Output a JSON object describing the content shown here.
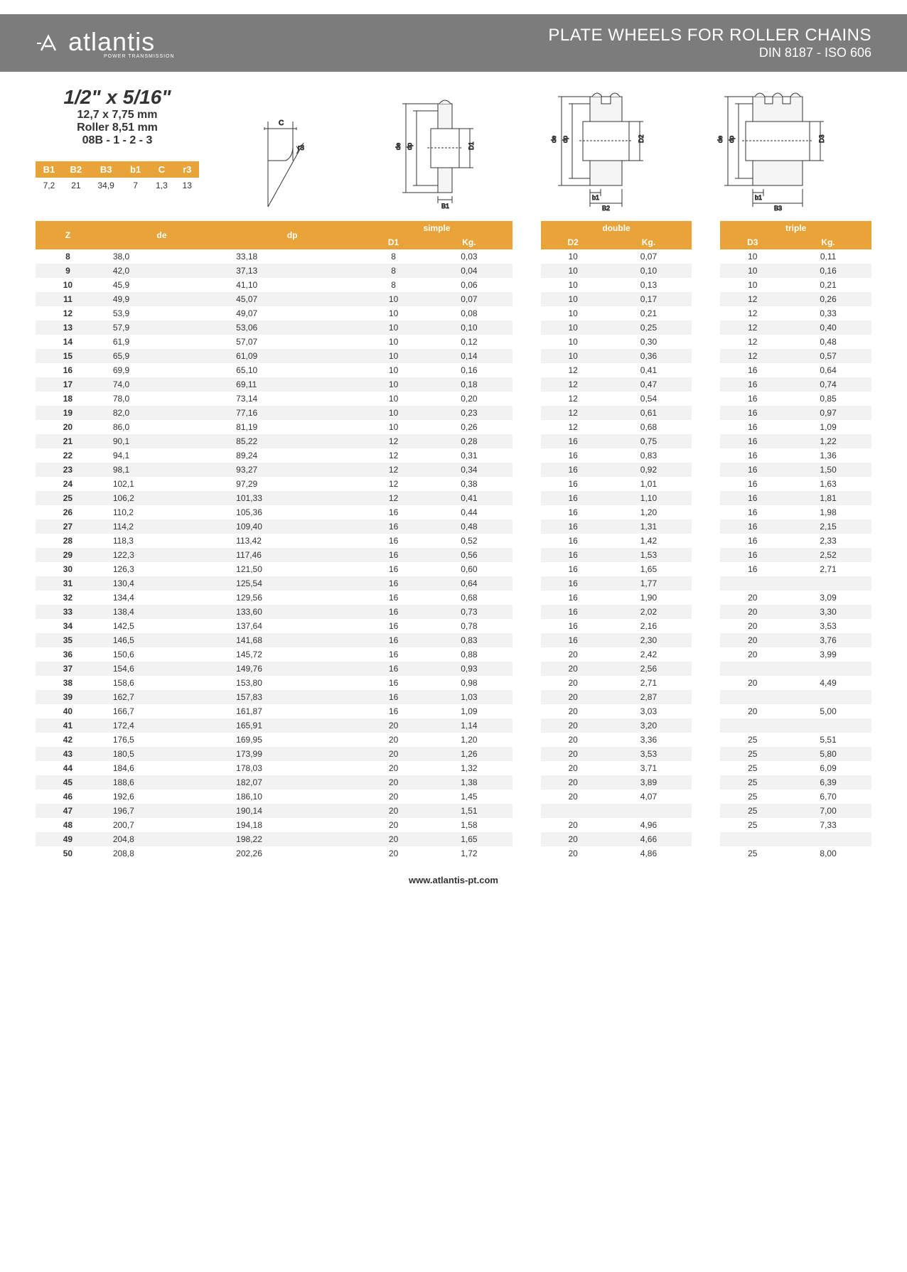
{
  "header": {
    "logo_text": "atlantis",
    "logo_sub": "POWER TRANSMISSION",
    "title": "PLATE WHEELS FOR ROLLER CHAINS",
    "subtitle": "DIN 8187 - ISO 606"
  },
  "spec": {
    "main": "1/2\" x 5/16\"",
    "mm": "12,7 x 7,75 mm",
    "roller": "Roller 8,51 mm",
    "code": "08B - 1 - 2 - 3",
    "headers": [
      "B1",
      "B2",
      "B3",
      "b1",
      "C",
      "r3"
    ],
    "values": [
      "7,2",
      "21",
      "34,9",
      "7",
      "1,3",
      "13"
    ]
  },
  "table": {
    "group_labels": [
      "simple",
      "double",
      "triple"
    ],
    "sub_headers": {
      "z": "Z",
      "de": "de",
      "dp": "dp",
      "d1": "D1",
      "kg1": "Kg.",
      "d2": "D2",
      "kg2": "Kg.",
      "d3": "D3",
      "kg3": "Kg."
    },
    "rows": [
      {
        "z": "8",
        "de": "38,0",
        "dp": "33,18",
        "d1": "8",
        "kg1": "0,03",
        "d2": "10",
        "kg2": "0,07",
        "d3": "10",
        "kg3": "0,11"
      },
      {
        "z": "9",
        "de": "42,0",
        "dp": "37,13",
        "d1": "8",
        "kg1": "0,04",
        "d2": "10",
        "kg2": "0,10",
        "d3": "10",
        "kg3": "0,16"
      },
      {
        "z": "10",
        "de": "45,9",
        "dp": "41,10",
        "d1": "8",
        "kg1": "0,06",
        "d2": "10",
        "kg2": "0,13",
        "d3": "10",
        "kg3": "0,21"
      },
      {
        "z": "11",
        "de": "49,9",
        "dp": "45,07",
        "d1": "10",
        "kg1": "0,07",
        "d2": "10",
        "kg2": "0,17",
        "d3": "12",
        "kg3": "0,26"
      },
      {
        "z": "12",
        "de": "53,9",
        "dp": "49,07",
        "d1": "10",
        "kg1": "0,08",
        "d2": "10",
        "kg2": "0,21",
        "d3": "12",
        "kg3": "0,33"
      },
      {
        "z": "13",
        "de": "57,9",
        "dp": "53,06",
        "d1": "10",
        "kg1": "0,10",
        "d2": "10",
        "kg2": "0,25",
        "d3": "12",
        "kg3": "0,40"
      },
      {
        "z": "14",
        "de": "61,9",
        "dp": "57,07",
        "d1": "10",
        "kg1": "0,12",
        "d2": "10",
        "kg2": "0,30",
        "d3": "12",
        "kg3": "0,48"
      },
      {
        "z": "15",
        "de": "65,9",
        "dp": "61,09",
        "d1": "10",
        "kg1": "0,14",
        "d2": "10",
        "kg2": "0,36",
        "d3": "12",
        "kg3": "0,57"
      },
      {
        "z": "16",
        "de": "69,9",
        "dp": "65,10",
        "d1": "10",
        "kg1": "0,16",
        "d2": "12",
        "kg2": "0,41",
        "d3": "16",
        "kg3": "0,64"
      },
      {
        "z": "17",
        "de": "74,0",
        "dp": "69,11",
        "d1": "10",
        "kg1": "0,18",
        "d2": "12",
        "kg2": "0,47",
        "d3": "16",
        "kg3": "0,74"
      },
      {
        "z": "18",
        "de": "78,0",
        "dp": "73,14",
        "d1": "10",
        "kg1": "0,20",
        "d2": "12",
        "kg2": "0,54",
        "d3": "16",
        "kg3": "0,85"
      },
      {
        "z": "19",
        "de": "82,0",
        "dp": "77,16",
        "d1": "10",
        "kg1": "0,23",
        "d2": "12",
        "kg2": "0,61",
        "d3": "16",
        "kg3": "0,97"
      },
      {
        "z": "20",
        "de": "86,0",
        "dp": "81,19",
        "d1": "10",
        "kg1": "0,26",
        "d2": "12",
        "kg2": "0,68",
        "d3": "16",
        "kg3": "1,09"
      },
      {
        "z": "21",
        "de": "90,1",
        "dp": "85,22",
        "d1": "12",
        "kg1": "0,28",
        "d2": "16",
        "kg2": "0,75",
        "d3": "16",
        "kg3": "1,22"
      },
      {
        "z": "22",
        "de": "94,1",
        "dp": "89,24",
        "d1": "12",
        "kg1": "0,31",
        "d2": "16",
        "kg2": "0,83",
        "d3": "16",
        "kg3": "1,36"
      },
      {
        "z": "23",
        "de": "98,1",
        "dp": "93,27",
        "d1": "12",
        "kg1": "0,34",
        "d2": "16",
        "kg2": "0,92",
        "d3": "16",
        "kg3": "1,50"
      },
      {
        "z": "24",
        "de": "102,1",
        "dp": "97,29",
        "d1": "12",
        "kg1": "0,38",
        "d2": "16",
        "kg2": "1,01",
        "d3": "16",
        "kg3": "1,63"
      },
      {
        "z": "25",
        "de": "106,2",
        "dp": "101,33",
        "d1": "12",
        "kg1": "0,41",
        "d2": "16",
        "kg2": "1,10",
        "d3": "16",
        "kg3": "1,81"
      },
      {
        "z": "26",
        "de": "110,2",
        "dp": "105,36",
        "d1": "16",
        "kg1": "0,44",
        "d2": "16",
        "kg2": "1,20",
        "d3": "16",
        "kg3": "1,98"
      },
      {
        "z": "27",
        "de": "114,2",
        "dp": "109,40",
        "d1": "16",
        "kg1": "0,48",
        "d2": "16",
        "kg2": "1,31",
        "d3": "16",
        "kg3": "2,15"
      },
      {
        "z": "28",
        "de": "118,3",
        "dp": "113,42",
        "d1": "16",
        "kg1": "0,52",
        "d2": "16",
        "kg2": "1,42",
        "d3": "16",
        "kg3": "2,33"
      },
      {
        "z": "29",
        "de": "122,3",
        "dp": "117,46",
        "d1": "16",
        "kg1": "0,56",
        "d2": "16",
        "kg2": "1,53",
        "d3": "16",
        "kg3": "2,52"
      },
      {
        "z": "30",
        "de": "126,3",
        "dp": "121,50",
        "d1": "16",
        "kg1": "0,60",
        "d2": "16",
        "kg2": "1,65",
        "d3": "16",
        "kg3": "2,71"
      },
      {
        "z": "31",
        "de": "130,4",
        "dp": "125,54",
        "d1": "16",
        "kg1": "0,64",
        "d2": "16",
        "kg2": "1,77",
        "d3": "",
        "kg3": ""
      },
      {
        "z": "32",
        "de": "134,4",
        "dp": "129,56",
        "d1": "16",
        "kg1": "0,68",
        "d2": "16",
        "kg2": "1,90",
        "d3": "20",
        "kg3": "3,09"
      },
      {
        "z": "33",
        "de": "138,4",
        "dp": "133,60",
        "d1": "16",
        "kg1": "0,73",
        "d2": "16",
        "kg2": "2,02",
        "d3": "20",
        "kg3": "3,30"
      },
      {
        "z": "34",
        "de": "142,5",
        "dp": "137,64",
        "d1": "16",
        "kg1": "0,78",
        "d2": "16",
        "kg2": "2,16",
        "d3": "20",
        "kg3": "3,53"
      },
      {
        "z": "35",
        "de": "146,5",
        "dp": "141,68",
        "d1": "16",
        "kg1": "0,83",
        "d2": "16",
        "kg2": "2,30",
        "d3": "20",
        "kg3": "3,76"
      },
      {
        "z": "36",
        "de": "150,6",
        "dp": "145,72",
        "d1": "16",
        "kg1": "0,88",
        "d2": "20",
        "kg2": "2,42",
        "d3": "20",
        "kg3": "3,99"
      },
      {
        "z": "37",
        "de": "154,6",
        "dp": "149,76",
        "d1": "16",
        "kg1": "0,93",
        "d2": "20",
        "kg2": "2,56",
        "d3": "",
        "kg3": ""
      },
      {
        "z": "38",
        "de": "158,6",
        "dp": "153,80",
        "d1": "16",
        "kg1": "0,98",
        "d2": "20",
        "kg2": "2,71",
        "d3": "20",
        "kg3": "4,49"
      },
      {
        "z": "39",
        "de": "162,7",
        "dp": "157,83",
        "d1": "16",
        "kg1": "1,03",
        "d2": "20",
        "kg2": "2,87",
        "d3": "",
        "kg3": ""
      },
      {
        "z": "40",
        "de": "166,7",
        "dp": "161,87",
        "d1": "16",
        "kg1": "1,09",
        "d2": "20",
        "kg2": "3,03",
        "d3": "20",
        "kg3": "5,00"
      },
      {
        "z": "41",
        "de": "172,4",
        "dp": "165,91",
        "d1": "20",
        "kg1": "1,14",
        "d2": "20",
        "kg2": "3,20",
        "d3": "",
        "kg3": ""
      },
      {
        "z": "42",
        "de": "176,5",
        "dp": "169,95",
        "d1": "20",
        "kg1": "1,20",
        "d2": "20",
        "kg2": "3,36",
        "d3": "25",
        "kg3": "5,51"
      },
      {
        "z": "43",
        "de": "180,5",
        "dp": "173,99",
        "d1": "20",
        "kg1": "1,26",
        "d2": "20",
        "kg2": "3,53",
        "d3": "25",
        "kg3": "5,80"
      },
      {
        "z": "44",
        "de": "184,6",
        "dp": "178,03",
        "d1": "20",
        "kg1": "1,32",
        "d2": "20",
        "kg2": "3,71",
        "d3": "25",
        "kg3": "6,09"
      },
      {
        "z": "45",
        "de": "188,6",
        "dp": "182,07",
        "d1": "20",
        "kg1": "1,38",
        "d2": "20",
        "kg2": "3,89",
        "d3": "25",
        "kg3": "6,39"
      },
      {
        "z": "46",
        "de": "192,6",
        "dp": "186,10",
        "d1": "20",
        "kg1": "1,45",
        "d2": "20",
        "kg2": "4,07",
        "d3": "25",
        "kg3": "6,70"
      },
      {
        "z": "47",
        "de": "196,7",
        "dp": "190,14",
        "d1": "20",
        "kg1": "1,51",
        "d2": "",
        "kg2": "",
        "d3": "25",
        "kg3": "7,00"
      },
      {
        "z": "48",
        "de": "200,7",
        "dp": "194,18",
        "d1": "20",
        "kg1": "1,58",
        "d2": "20",
        "kg2": "4,96",
        "d3": "25",
        "kg3": "7,33"
      },
      {
        "z": "49",
        "de": "204,8",
        "dp": "198,22",
        "d1": "20",
        "kg1": "1,65",
        "d2": "20",
        "kg2": "4,66",
        "d3": "",
        "kg3": ""
      },
      {
        "z": "50",
        "de": "208,8",
        "dp": "202,26",
        "d1": "20",
        "kg1": "1,72",
        "d2": "20",
        "kg2": "4,86",
        "d3": "25",
        "kg3": "8,00"
      }
    ]
  },
  "footer": "www.atlantis-pt.com",
  "colors": {
    "header_bg": "#7c7c7c",
    "accent": "#e8a339",
    "row_alt": "#f2f2f2"
  }
}
